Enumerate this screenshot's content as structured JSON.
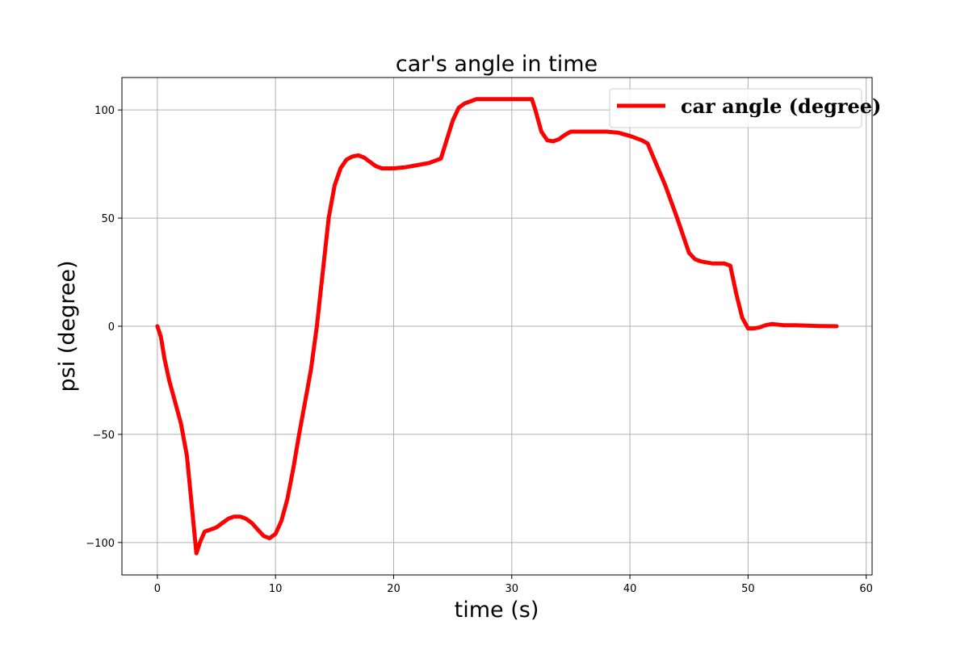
{
  "chart_data": {
    "type": "line",
    "title": "car's angle in time",
    "xlabel": "time (s)",
    "ylabel": "psi (degree)",
    "xlim": [
      -3,
      60.5
    ],
    "ylim": [
      -115,
      115
    ],
    "xticks": [
      0,
      10,
      20,
      30,
      40,
      50,
      60
    ],
    "yticks": [
      -100,
      -50,
      0,
      50,
      100
    ],
    "xtick_labels": [
      "0",
      "10",
      "20",
      "30",
      "40",
      "50",
      "60"
    ],
    "ytick_labels": [
      "−100",
      "−50",
      "0",
      "50",
      "100"
    ],
    "grid": true,
    "legend_position": "upper right",
    "series": [
      {
        "name": "car angle (degree)",
        "color": "#ff0000",
        "x": [
          0,
          0.3,
          0.6,
          1,
          1.5,
          2,
          2.5,
          3,
          3.3,
          3.6,
          4,
          4.5,
          5,
          5.5,
          6,
          6.5,
          7,
          7.5,
          8,
          8.5,
          9,
          9.5,
          10,
          10.5,
          11,
          11.5,
          12,
          12.5,
          13,
          13.5,
          14,
          14.5,
          15,
          15.5,
          16,
          16.5,
          17,
          17.5,
          18,
          18.5,
          19,
          19.5,
          20,
          21,
          22,
          23,
          24,
          25,
          25.5,
          26,
          27,
          28,
          29,
          30,
          31,
          31.7,
          32,
          32.5,
          33,
          33.5,
          34,
          34.5,
          35,
          36,
          37,
          38,
          39,
          40,
          41,
          41.5,
          42,
          43,
          44,
          45,
          45.5,
          46,
          47,
          48,
          48.5,
          49,
          49.5,
          50,
          50.5,
          51,
          51.5,
          52,
          53,
          54,
          55,
          56,
          57.5
        ],
        "y": [
          0,
          -5,
          -15,
          -25,
          -35,
          -45,
          -60,
          -88,
          -105,
          -100,
          -95,
          -94,
          -93,
          -91,
          -89,
          -88,
          -88,
          -89,
          -91,
          -94,
          -97,
          -98,
          -96,
          -90,
          -80,
          -66,
          -50,
          -35,
          -20,
          0,
          25,
          50,
          65,
          73,
          77,
          78.5,
          79,
          78,
          76,
          74,
          73,
          73,
          73,
          73.5,
          74.5,
          75.5,
          77.5,
          95,
          101,
          103,
          105,
          105,
          105,
          105,
          105,
          105,
          100,
          90,
          86,
          85.5,
          86.5,
          88.5,
          90,
          90,
          90,
          90,
          89.5,
          88,
          86,
          84.5,
          78,
          65,
          50,
          34,
          31,
          30,
          29,
          29,
          28,
          15,
          4,
          -1,
          -1,
          -0.5,
          0.5,
          1,
          0.5,
          0.5,
          0.3,
          0.1,
          0
        ]
      }
    ]
  }
}
